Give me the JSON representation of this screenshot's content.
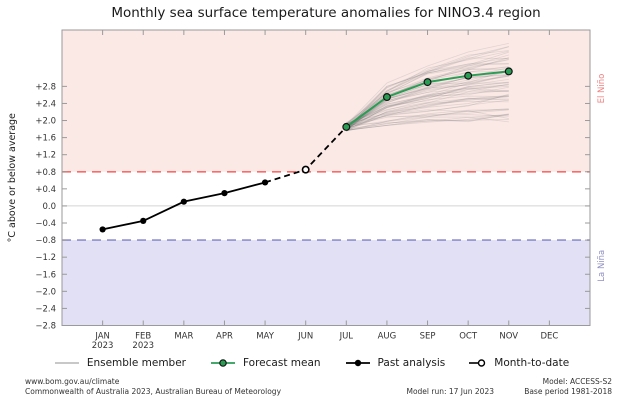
{
  "title": "Monthly sea surface temperature anomalies for NINO3.4 region",
  "chart_data": {
    "type": "line",
    "title": "Monthly sea surface temperature anomalies for NINO3.4 region",
    "ylabel": "°C above or below average",
    "x_categories": [
      "JAN",
      "FEB",
      "MAR",
      "APR",
      "MAY",
      "JUN",
      "JUL",
      "AUG",
      "SEP",
      "OCT",
      "NOV",
      "DEC"
    ],
    "x_year_labels": [
      "2023",
      "2023",
      "",
      "",
      "",
      "",
      "",
      "",
      "",
      "",
      "",
      ""
    ],
    "ylim": [
      -2.8,
      4.12
    ],
    "yticks": [
      2.8,
      2.4,
      2.0,
      1.6,
      1.2,
      0.8,
      0.4,
      0.0,
      -0.4,
      -0.8,
      -1.2,
      -1.6,
      -2.0,
      -2.4,
      -2.8
    ],
    "ytick_labels": [
      "+2.8",
      "+2.4",
      "+2.0",
      "+1.6",
      "+1.2",
      "+0.8",
      "+0.4",
      "0.0",
      "−0.4",
      "−0.8",
      "−1.2",
      "−1.6",
      "−2.0",
      "−2.4",
      "−2.8"
    ],
    "grid": "zero-line-only",
    "legend_position": "bottom",
    "series": [
      {
        "name": "Past analysis",
        "month_indices": [
          0,
          1,
          2,
          3,
          4
        ],
        "values": [
          -0.55,
          -0.35,
          0.1,
          0.3,
          0.55
        ],
        "style": "solid-black-dots"
      },
      {
        "name": "Month-to-date",
        "month_indices": [
          5
        ],
        "values": [
          0.85
        ],
        "style": "open-circle"
      },
      {
        "name": "Forecast mean",
        "month_indices": [
          6,
          7,
          8,
          9,
          10
        ],
        "values": [
          1.85,
          2.55,
          2.9,
          3.05,
          3.15
        ],
        "style": "solid-green-dots"
      }
    ],
    "dashed_connection": {
      "month_indices": [
        4,
        5,
        6
      ],
      "values": [
        0.55,
        0.85,
        1.85
      ]
    },
    "ensemble": {
      "name": "Ensemble member",
      "count": 64,
      "month_indices": [
        6,
        7,
        8,
        9,
        10
      ],
      "start_range": [
        1.75,
        1.95
      ],
      "end_range": [
        2.0,
        3.72
      ]
    },
    "thresholds": {
      "el_nino": 0.8,
      "la_nina": -0.8
    },
    "region_labels": {
      "upper": "El Niño",
      "upper_value": 2.75,
      "lower": "La Niña",
      "lower_value": -1.4
    },
    "colors": {
      "el_nino_band": "#fbe9e6",
      "la_nina_band": "#e1e0f4",
      "el_nino_line": "#fa6b6b",
      "la_nina_line": "#8f8fd1",
      "el_nino_text": "#ef8080",
      "la_nina_text": "#8f8fc4",
      "forecast": "#2a9d54",
      "past": "#000000",
      "ensemble": "#777777",
      "ensemble_opacity": "0.18",
      "zero_line": "#d4d4d4",
      "frame": "#9a9a9a"
    }
  },
  "legend": {
    "items": [
      {
        "label": "Ensemble member",
        "marker": "gray-line"
      },
      {
        "label": "Forecast mean",
        "marker": "green-line-dot"
      },
      {
        "label": "Past analysis",
        "marker": "black-line-dot"
      },
      {
        "label": "Month-to-date",
        "marker": "open-circle"
      }
    ]
  },
  "footer": {
    "url": "www.bom.gov.au/climate",
    "copyright": "Commonwealth of Australia 2023, Australian Bureau of Meteorology",
    "model_run": "Model run: 17 Jun 2023",
    "model": "Model: ACCESS-S2",
    "base_period": "Base period 1981-2018"
  }
}
